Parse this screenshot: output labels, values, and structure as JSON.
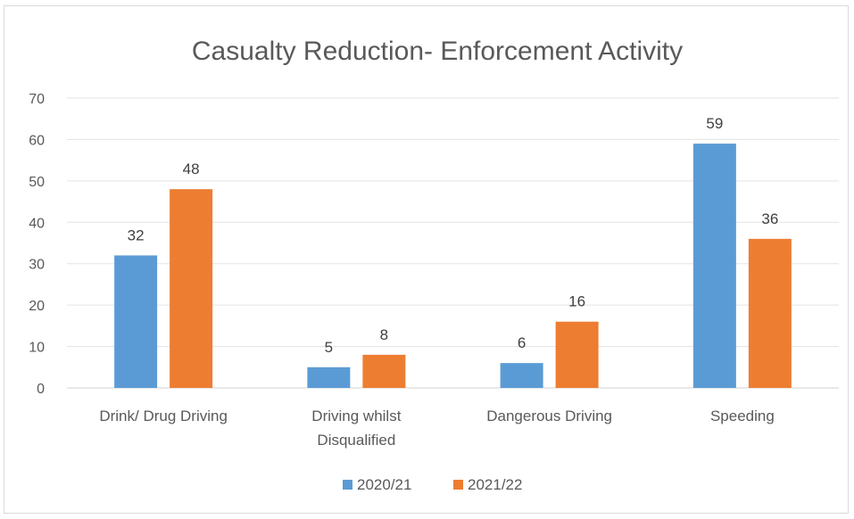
{
  "chart_data": {
    "type": "bar",
    "title": "Casualty Reduction- Enforcement Activity",
    "categories": [
      [
        "Drink/ Drug Driving"
      ],
      [
        "Driving whilst",
        "Disqualified"
      ],
      [
        "Dangerous Driving"
      ],
      [
        "Speeding"
      ]
    ],
    "series": [
      {
        "name": "2020/21",
        "color": "#5b9bd5",
        "values": [
          32,
          5,
          6,
          59
        ]
      },
      {
        "name": "2021/22",
        "color": "#ed7d31",
        "values": [
          48,
          8,
          16,
          36
        ]
      }
    ],
    "ylim": [
      0,
      70
    ],
    "yticks": [
      0,
      10,
      20,
      30,
      40,
      50,
      60,
      70
    ],
    "grid": true,
    "legend": "bottom"
  }
}
